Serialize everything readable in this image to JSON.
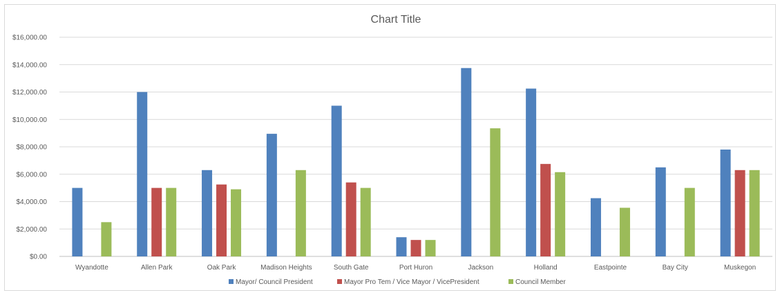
{
  "chart_data": {
    "type": "bar",
    "title": "Chart Title",
    "xlabel": "",
    "ylabel": "",
    "ylim": [
      0,
      16000
    ],
    "y_ticks": [
      "$0.00",
      "$2,000.00",
      "$4,000.00",
      "$6,000.00",
      "$8,000.00",
      "$10,000.00",
      "$12,000.00",
      "$14,000.00",
      "$16,000.00"
    ],
    "y_tick_values": [
      0,
      2000,
      4000,
      6000,
      8000,
      10000,
      12000,
      14000,
      16000
    ],
    "grid": true,
    "legend_position": "bottom",
    "categories": [
      "Wyandotte",
      "Allen Park",
      "Oak Park",
      "Madison Heights",
      "South Gate",
      "Port Huron",
      "Jackson",
      "Holland",
      "Eastpointe",
      "Bay City",
      "Muskegon"
    ],
    "series": [
      {
        "name": "Mayor/ Council President",
        "color": "#4f81bd",
        "values": [
          5000,
          12000,
          6300,
          8950,
          11000,
          1400,
          13750,
          12250,
          4250,
          6500,
          7800
        ]
      },
      {
        "name": "Mayor Pro Tem / Vice Mayor / VicePresident",
        "color": "#c0504d",
        "values": [
          null,
          5000,
          5250,
          null,
          5400,
          1200,
          null,
          6750,
          null,
          null,
          6300
        ]
      },
      {
        "name": "Council Member",
        "color": "#9bbb59",
        "values": [
          2500,
          5000,
          4900,
          6300,
          5000,
          1200,
          9350,
          6150,
          3550,
          5000,
          6300
        ]
      }
    ]
  }
}
